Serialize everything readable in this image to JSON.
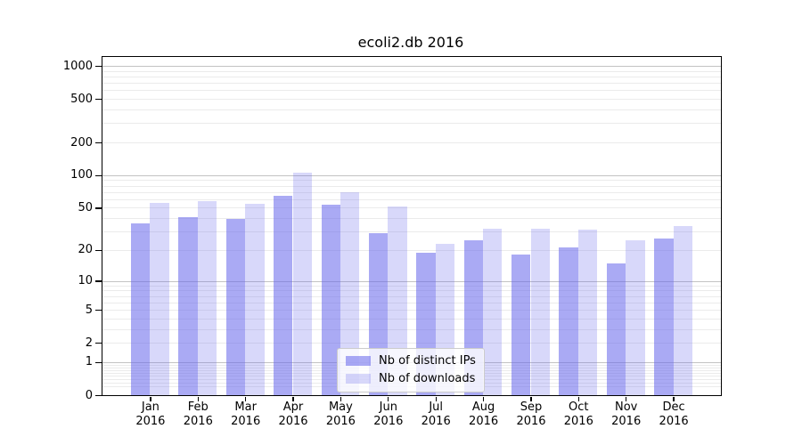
{
  "chart_data": {
    "type": "bar",
    "title": "ecoli2.db 2016",
    "categories": [
      "Jan",
      "Feb",
      "Mar",
      "Apr",
      "May",
      "Jun",
      "Jul",
      "Aug",
      "Sep",
      "Oct",
      "Nov",
      "Dec"
    ],
    "category_year": "2016",
    "series": [
      {
        "name": "Nb of distinct IPs",
        "color": "rgba(100,100,235,0.55)",
        "values": [
          36,
          41,
          39,
          65,
          53,
          29,
          19,
          25,
          18,
          21,
          15,
          26
        ]
      },
      {
        "name": "Nb of downloads",
        "color": "rgba(100,100,235,0.25)",
        "values": [
          55,
          58,
          54,
          106,
          70,
          51,
          23,
          32,
          32,
          31,
          25,
          34
        ]
      }
    ],
    "y_axis": {
      "scale": "log1p",
      "max": 1205,
      "tick_values": [
        1000,
        500,
        200,
        100,
        50,
        20,
        10,
        5,
        2,
        1,
        0
      ],
      "tick_labels": [
        "1000",
        "500",
        "200",
        "100",
        "50",
        "20",
        "10",
        "5",
        "2",
        "1",
        "0"
      ],
      "major_grid": [
        1000,
        100,
        10,
        1
      ],
      "minor_grid": [
        900,
        800,
        700,
        600,
        500,
        400,
        300,
        200,
        90,
        80,
        70,
        60,
        50,
        40,
        30,
        20,
        9,
        8,
        7,
        6,
        5,
        4,
        3,
        2,
        0.9,
        0.8,
        0.7,
        0.6,
        0.5,
        0.4,
        0.3,
        0.2
      ]
    },
    "legend_position": "lower center",
    "grid": true,
    "colors": {
      "bar_base": "#6464eb",
      "major_gridline": "#c3c3c3",
      "minor_gridline": "#ebebeb",
      "frame": "#000000",
      "background": "#ffffff"
    }
  }
}
